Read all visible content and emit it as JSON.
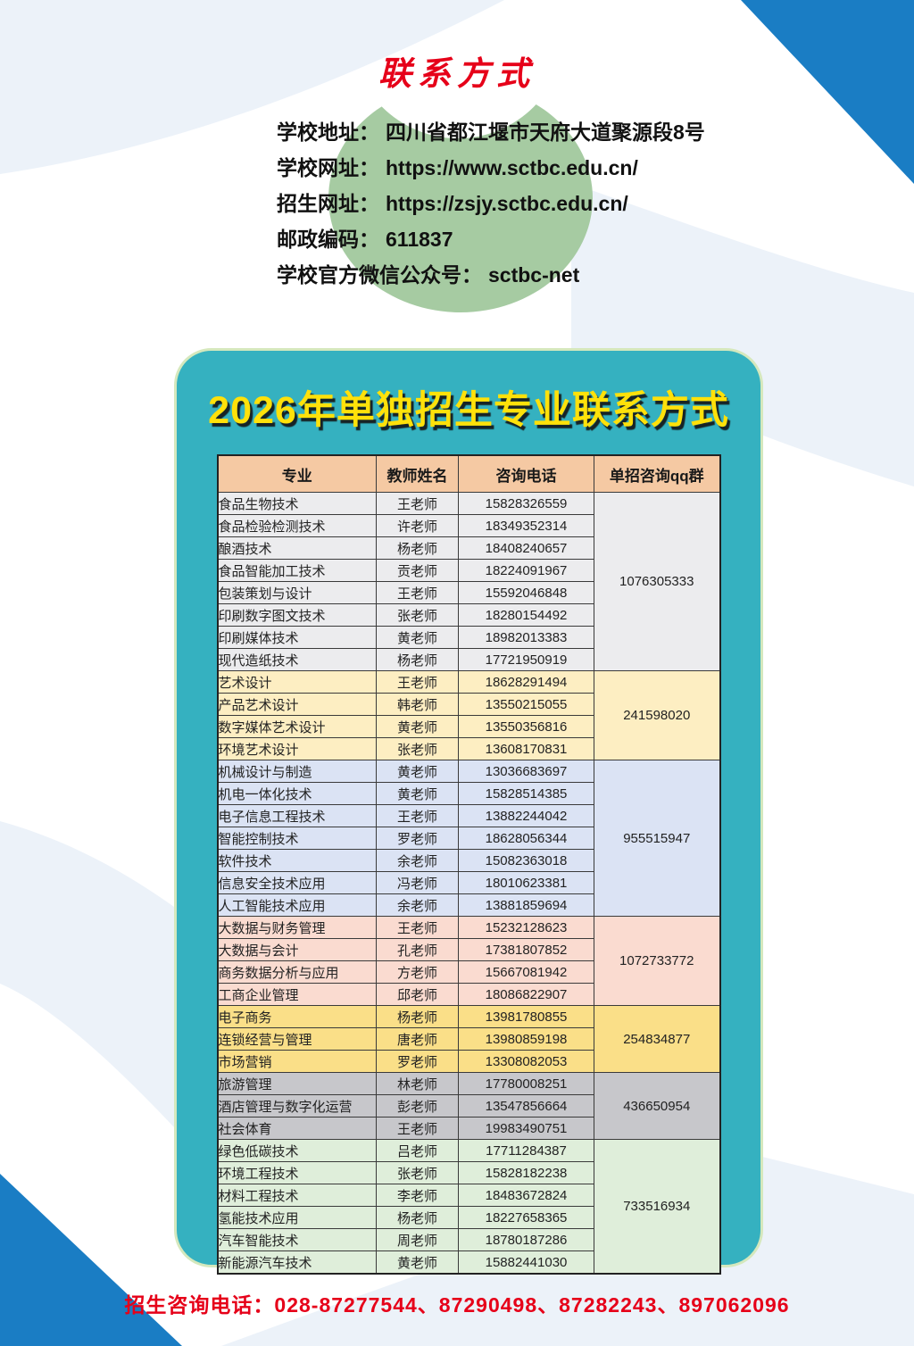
{
  "top_title": "联系方式",
  "contact": {
    "lines": [
      {
        "label": "学校地址：",
        "value": "四川省都江堰市天府大道聚源段8号"
      },
      {
        "label": "学校网址：",
        "value": "https://www.sctbc.edu.cn/"
      },
      {
        "label": "招生网址：",
        "value": "https://zsjy.sctbc.edu.cn/"
      },
      {
        "label": "邮政编码：",
        "value": "611837"
      },
      {
        "label": "学校官方微信公众号：",
        "value": "sctbc-net"
      }
    ]
  },
  "card": {
    "title": "2026年单独招生专业联系方式",
    "table": {
      "headers": [
        "专业",
        "教师姓名",
        "咨询电话",
        "单招咨询qq群"
      ],
      "groups": [
        {
          "qq": "1076305333",
          "color": "#ececee",
          "rows": [
            [
              "食品生物技术",
              "王老师",
              "15828326559"
            ],
            [
              "食品检验检测技术",
              "许老师",
              "18349352314"
            ],
            [
              "酿酒技术",
              "杨老师",
              "18408240657"
            ],
            [
              "食品智能加工技术",
              "贡老师",
              "18224091967"
            ],
            [
              "包装策划与设计",
              "王老师",
              "15592046848"
            ],
            [
              "印刷数字图文技术",
              "张老师",
              "18280154492"
            ],
            [
              "印刷媒体技术",
              "黄老师",
              "18982013383"
            ],
            [
              "现代造纸技术",
              "杨老师",
              "17721950919"
            ]
          ]
        },
        {
          "qq": "241598020",
          "color": "#fdeec2",
          "rows": [
            [
              "艺术设计",
              "王老师",
              "18628291494"
            ],
            [
              "产品艺术设计",
              "韩老师",
              "13550215055"
            ],
            [
              "数字媒体艺术设计",
              "黄老师",
              "13550356816"
            ],
            [
              "环境艺术设计",
              "张老师",
              "13608170831"
            ]
          ]
        },
        {
          "qq": "955515947",
          "color": "#dbe3f4",
          "rows": [
            [
              "机械设计与制造",
              "黄老师",
              "13036683697"
            ],
            [
              "机电一体化技术",
              "黄老师",
              "15828514385"
            ],
            [
              "电子信息工程技术",
              "王老师",
              "13882244042"
            ],
            [
              "智能控制技术",
              "罗老师",
              "18628056344"
            ],
            [
              "软件技术",
              "余老师",
              "15082363018"
            ],
            [
              "信息安全技术应用",
              "冯老师",
              "18010623381"
            ],
            [
              "人工智能技术应用",
              "余老师",
              "13881859694"
            ]
          ]
        },
        {
          "qq": "1072733772",
          "color": "#fadbd0",
          "rows": [
            [
              "大数据与财务管理",
              "王老师",
              "15232128623"
            ],
            [
              "大数据与会计",
              "孔老师",
              "17381807852"
            ],
            [
              "商务数据分析与应用",
              "方老师",
              "15667081942"
            ],
            [
              "工商企业管理",
              "邱老师",
              "18086822907"
            ]
          ]
        },
        {
          "qq": "254834877",
          "color": "#fadf88",
          "rows": [
            [
              "电子商务",
              "杨老师",
              "13981780855"
            ],
            [
              "连锁经营与管理",
              "唐老师",
              "13980859198"
            ],
            [
              "市场营销",
              "罗老师",
              "13308082053"
            ]
          ]
        },
        {
          "qq": "436650954",
          "color": "#c7c7cb",
          "rows": [
            [
              "旅游管理",
              "林老师",
              "17780008251"
            ],
            [
              "酒店管理与数字化运营",
              "彭老师",
              "13547856664"
            ],
            [
              "社会体育",
              "王老师",
              "19983490751"
            ]
          ]
        },
        {
          "qq": "733516934",
          "color": "#dfeeda",
          "rows": [
            [
              "绿色低碳技术",
              "吕老师",
              "17711284387"
            ],
            [
              "环境工程技术",
              "张老师",
              "15828182238"
            ],
            [
              "材料工程技术",
              "李老师",
              "18483672824"
            ],
            [
              "氢能技术应用",
              "杨老师",
              "18227658365"
            ],
            [
              "汽车智能技术",
              "周老师",
              "18780187286"
            ],
            [
              "新能源汽车技术",
              "黄老师",
              "15882441030"
            ]
          ]
        }
      ]
    }
  },
  "footer": "招生咨询电话：028-87277544、87290498、87282243、897062096",
  "colors": {
    "accent_red": "#e60019",
    "title_yellow": "#ffe10a",
    "card_teal": "#35b1c0",
    "card_border_green": "#d5e8bd",
    "header_peach": "#f5c9a3",
    "corner_blue": "#1a7dc4",
    "leaf_green": "#a6cba2",
    "swoosh_blue": "#ecf2f9"
  }
}
